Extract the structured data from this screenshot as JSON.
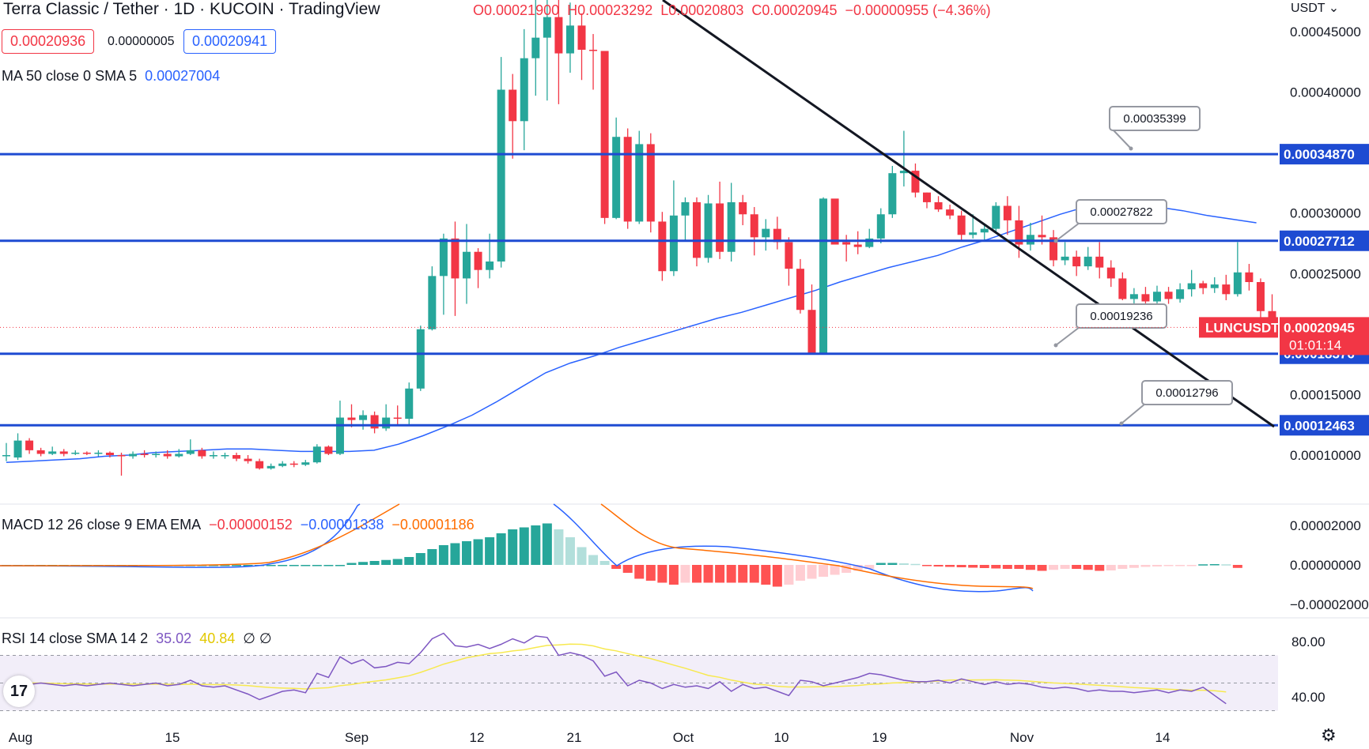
{
  "header": {
    "symbol_title": "Terra Classic / Tether · 1D · KUCOIN · TradingView",
    "ohlc": {
      "o": "O0.00021900",
      "h": "H0.00023292",
      "l": "L0.00020803",
      "c": "C0.00020945",
      "chg": "−0.00000955 (−4.36%)"
    },
    "bid": "0.00020936",
    "spread": "0.00000005",
    "ask": "0.00020941",
    "currency": "USDT ⌄"
  },
  "indicators": {
    "ma_label": "MA 50 close 0 SMA 5",
    "ma_value": "0.00027004",
    "macd_label": "MACD 12 26 close 9 EMA EMA",
    "macd_hist": "−0.00000152",
    "macd_line": "−0.00001338",
    "macd_signal": "−0.00001186",
    "rsi_label": "RSI 14 close SMA 14 2",
    "rsi_value": "35.02",
    "rsi_sma": "40.84",
    "rsi_extra": "∅ ∅"
  },
  "colors": {
    "up": "#26a69a",
    "down": "#f23645",
    "line": "#1e4bd2",
    "ma": "#2962ff",
    "signal": "#ff6d00",
    "rsi": "#7e57c2",
    "rsi_sma": "#f7e94f"
  },
  "icons": {
    "logo": "tradingview-logo-icon",
    "settings": "gear-icon"
  },
  "chart_data": {
    "type": "candlestick",
    "x_ticks": [
      "Aug",
      "15",
      "Sep",
      "12",
      "21",
      "Oct",
      "10",
      "19",
      "Nov",
      "14"
    ],
    "y_ticks": [
      "0.00045000",
      "0.00040000",
      "0.00030000",
      "0.00025000",
      "0.00015000",
      "0.00010000"
    ],
    "support_resistance": [
      {
        "value": 0.0003487,
        "label": "0.00034870"
      },
      {
        "value": 0.00027712,
        "label": "0.00027712"
      },
      {
        "value": 0.00018376,
        "label": "0.00018376"
      },
      {
        "value": 0.00012463,
        "label": "0.00012463"
      }
    ],
    "callouts": [
      "0.00035399",
      "0.00027822",
      "0.00019236",
      "0.00012796"
    ],
    "last_price": {
      "symbol": "LUNCUSDT",
      "value": "0.00020945",
      "countdown": "01:01:14"
    },
    "candles": [
      [
        0.0001,
        0.0001,
        0.00011,
        9.5e-05
      ],
      [
        9.8e-05,
        0.000112,
        0.000118,
        9.6e-05
      ],
      [
        0.000112,
        0.000104,
        0.000114,
        0.000101
      ],
      [
        0.000104,
        0.000101,
        0.000106,
        9.9e-05
      ],
      [
        0.000101,
        0.000103,
        0.000107,
        0.0001
      ],
      [
        0.000103,
        0.000101,
        0.000105,
        9.9e-05
      ],
      [
        0.000101,
        0.000102,
        0.000104,
        0.0001
      ],
      [
        0.000102,
        0.000101,
        0.000103,
        0.0001
      ],
      [
        0.000101,
        0.000102,
        0.000104,
        9.9e-05
      ],
      [
        0.000102,
        0.0001,
        0.000103,
        9.8e-05
      ],
      [
        0.0001,
        9.9e-05,
        0.000102,
        8.3e-05
      ],
      [
        9.9e-05,
        0.000101,
        0.000103,
        9.7e-05
      ],
      [
        0.000101,
        0.0001,
        0.000104,
        9.8e-05
      ],
      [
        0.0001,
        0.000101,
        0.000103,
        9.8e-05
      ],
      [
        0.000101,
        9.9e-05,
        0.000104,
        9.7e-05
      ],
      [
        9.9e-05,
        0.000101,
        0.000105,
        9.8e-05
      ],
      [
        0.000101,
        0.000104,
        0.000113,
        0.0001
      ],
      [
        0.000104,
        9.9e-05,
        0.000106,
        9.7e-05
      ],
      [
        9.9e-05,
        0.0001,
        0.000103,
        9.7e-05
      ],
      [
        0.0001,
        0.0001,
        0.000102,
        9.7e-05
      ],
      [
        0.0001,
        9.7e-05,
        0.000102,
        9.5e-05
      ],
      [
        9.7e-05,
        9.5e-05,
        0.0001,
        9.3e-05
      ],
      [
        9.5e-05,
        8.9e-05,
        9.7e-05,
        8.8e-05
      ],
      [
        8.9e-05,
        9.1e-05,
        9.3e-05,
        8.8e-05
      ],
      [
        9.1e-05,
        9.3e-05,
        9.5e-05,
        9e-05
      ],
      [
        9.3e-05,
        9.2e-05,
        9.5e-05,
        9e-05
      ],
      [
        9.2e-05,
        9.4e-05,
        9.6e-05,
        9.1e-05
      ],
      [
        9.4e-05,
        0.000107,
        0.000109,
        9.3e-05
      ],
      [
        0.000107,
        0.000101,
        0.000108,
        0.0001
      ],
      [
        0.000101,
        0.000131,
        0.000145,
        0.0001
      ],
      [
        0.000131,
        0.000129,
        0.000142,
        0.000123
      ],
      [
        0.000129,
        0.000133,
        0.000137,
        0.000121
      ],
      [
        0.000133,
        0.000122,
        0.000136,
        0.000118
      ],
      [
        0.000122,
        0.000131,
        0.000142,
        0.00012
      ],
      [
        0.000131,
        0.00013,
        0.000141,
        0.000124
      ],
      [
        0.00013,
        0.000155,
        0.00016,
        0.000125
      ],
      [
        0.000155,
        0.000204,
        0.000207,
        0.000153
      ],
      [
        0.000204,
        0.000248,
        0.000256,
        0.000203
      ],
      [
        0.000248,
        0.000279,
        0.000283,
        0.000216
      ],
      [
        0.000279,
        0.000246,
        0.000293,
        0.000215
      ],
      [
        0.000246,
        0.000268,
        0.000291,
        0.000225
      ],
      [
        0.000268,
        0.000253,
        0.000271,
        0.000238
      ],
      [
        0.000253,
        0.00026,
        0.000283,
        0.000246
      ],
      [
        0.00026,
        0.000402,
        0.000429,
        0.000255
      ],
      [
        0.000402,
        0.000376,
        0.000415,
        0.000345
      ],
      [
        0.000376,
        0.000428,
        0.000452,
        0.000352
      ],
      [
        0.000428,
        0.000445,
        0.000486,
        0.000397
      ],
      [
        0.000445,
        0.000462,
        0.000491,
        0.000393
      ],
      [
        0.000462,
        0.000432,
        0.000484,
        0.00039
      ],
      [
        0.000432,
        0.000455,
        0.000474,
        0.000416
      ],
      [
        0.000455,
        0.000435,
        0.000465,
        0.00041
      ],
      [
        0.000435,
        0.000434,
        0.000448,
        0.000402
      ],
      [
        0.000434,
        0.000296,
        0.000427,
        0.000291
      ],
      [
        0.000296,
        0.000363,
        0.000379,
        0.000295
      ],
      [
        0.000363,
        0.000293,
        0.00037,
        0.000287
      ],
      [
        0.000293,
        0.000357,
        0.000368,
        0.000291
      ],
      [
        0.000357,
        0.000293,
        0.000366,
        0.000284
      ],
      [
        0.000293,
        0.000252,
        0.000301,
        0.000244
      ],
      [
        0.000252,
        0.000298,
        0.000327,
        0.000248
      ],
      [
        0.000298,
        0.000309,
        0.000313,
        0.000277
      ],
      [
        0.000309,
        0.000263,
        0.000313,
        0.000256
      ],
      [
        0.000263,
        0.000308,
        0.000315,
        0.000259
      ],
      [
        0.000308,
        0.000268,
        0.000326,
        0.000262
      ],
      [
        0.000268,
        0.000309,
        0.000325,
        0.00026
      ],
      [
        0.000309,
        0.000299,
        0.000315,
        0.00029
      ],
      [
        0.000299,
        0.00028,
        0.000305,
        0.000265
      ],
      [
        0.00028,
        0.000287,
        0.000295,
        0.000269
      ],
      [
        0.000287,
        0.000276,
        0.000297,
        0.00027
      ],
      [
        0.000276,
        0.000254,
        0.00028,
        0.00024
      ],
      [
        0.000254,
        0.00022,
        0.000262,
        0.000217
      ],
      [
        0.00022,
        0.000184,
        0.000241,
        0.000183
      ],
      [
        0.000184,
        0.000312,
        0.000313,
        0.000183
      ],
      [
        0.000312,
        0.000274,
        0.000311,
        0.000276
      ],
      [
        0.000276,
        0.000274,
        0.000282,
        0.00026
      ],
      [
        0.000274,
        0.000272,
        0.000285,
        0.000266
      ],
      [
        0.000272,
        0.000279,
        0.000287,
        0.000271
      ],
      [
        0.000279,
        0.000299,
        0.000304,
        0.000275
      ],
      [
        0.000299,
        0.000333,
        0.000339,
        0.000296
      ],
      [
        0.000333,
        0.000335,
        0.000368,
        0.000322
      ],
      [
        0.000335,
        0.000317,
        0.000341,
        0.000313
      ],
      [
        0.000317,
        0.000309,
        0.000317,
        0.000304
      ],
      [
        0.000309,
        0.000303,
        0.000314,
        0.000301
      ],
      [
        0.000303,
        0.000298,
        0.000307,
        0.000295
      ],
      [
        0.000298,
        0.000282,
        0.000302,
        0.000277
      ],
      [
        0.000282,
        0.000284,
        0.000299,
        0.000279
      ],
      [
        0.000284,
        0.000287,
        0.000291,
        0.000277
      ],
      [
        0.000287,
        0.000306,
        0.000309,
        0.000283
      ],
      [
        0.000306,
        0.000294,
        0.000314,
        0.000282
      ],
      [
        0.000294,
        0.000274,
        0.000306,
        0.000263
      ],
      [
        0.000274,
        0.000282,
        0.000292,
        0.000269
      ],
      [
        0.000282,
        0.00028,
        0.000298,
        0.000274
      ],
      [
        0.00028,
        0.000261,
        0.000286,
        0.000256
      ],
      [
        0.000261,
        0.000264,
        0.000276,
        0.000257
      ],
      [
        0.000264,
        0.000256,
        0.000269,
        0.000248
      ],
      [
        0.000256,
        0.000264,
        0.000272,
        0.000253
      ],
      [
        0.000264,
        0.000255,
        0.000276,
        0.000246
      ],
      [
        0.000255,
        0.000246,
        0.000261,
        0.000239
      ],
      [
        0.000246,
        0.000229,
        0.000251,
        0.000228
      ],
      [
        0.000229,
        0.000233,
        0.000238,
        0.000224
      ],
      [
        0.000233,
        0.000227,
        0.000239,
        0.000221
      ],
      [
        0.000227,
        0.000235,
        0.00024,
        0.000225
      ],
      [
        0.000235,
        0.000229,
        0.000239,
        0.000225
      ],
      [
        0.000229,
        0.000237,
        0.000242,
        0.000226
      ],
      [
        0.000237,
        0.000242,
        0.000253,
        0.000231
      ],
      [
        0.000242,
        0.000238,
        0.000244,
        0.000233
      ],
      [
        0.000238,
        0.000241,
        0.000247,
        0.000234
      ],
      [
        0.000241,
        0.000233,
        0.000249,
        0.000228
      ],
      [
        0.000233,
        0.000251,
        0.000276,
        0.000231
      ],
      [
        0.000251,
        0.000243,
        0.000258,
        0.000236
      ],
      [
        0.000243,
        0.000219,
        0.000246,
        0.000199
      ],
      [
        0.000219,
        0.00020945,
        0.00023292,
        0.00020803
      ]
    ],
    "ma50": [
      9.4e-05,
      9.5e-05,
      9.6e-05,
      9.7e-05,
      9.9e-05,
      0.0001,
      0.000102,
      0.000103,
      0.000104,
      0.000105,
      0.000105,
      0.000104,
      0.000103,
      0.000103,
      0.000103,
      0.000104,
      0.000109,
      0.000116,
      0.000124,
      0.000133,
      0.000144,
      0.000156,
      0.000168,
      0.000176,
      0.000182,
      0.000189,
      0.000195,
      0.000201,
      0.000207,
      0.000213,
      0.000218,
      0.000224,
      0.00023,
      0.000236,
      0.000243,
      0.000249,
      0.000255,
      0.00026,
      0.000265,
      0.000272,
      0.000278,
      0.000285,
      0.000292,
      0.000299,
      0.000305,
      0.000306,
      0.000307,
      0.000305,
      0.000302,
      0.000298,
      0.000295,
      0.000292
    ],
    "ma_start_index": 0,
    "macd_hist": [
      0,
      0,
      0,
      0,
      0,
      0,
      0,
      0,
      0,
      0,
      0,
      0,
      0,
      0,
      0,
      0,
      0,
      0,
      0,
      0,
      0,
      0,
      0,
      0,
      0,
      0,
      0,
      0,
      0,
      0,
      1e-06,
      1.5e-06,
      2e-06,
      2.5e-06,
      3e-06,
      4e-06,
      6e-06,
      8e-06,
      1e-05,
      1.1e-05,
      1.2e-05,
      1.3e-05,
      1.4e-05,
      1.6e-05,
      1.8e-05,
      1.9e-05,
      2e-05,
      2.1e-05,
      1.8e-05,
      1.4e-05,
      9e-06,
      5e-06,
      2e-06,
      -2e-06,
      -4e-06,
      -7e-06,
      -8e-06,
      -9e-06,
      -1e-05,
      -9e-06,
      -9e-06,
      -9e-06,
      -9e-06,
      -9e-06,
      -9e-06,
      -9e-06,
      -1e-05,
      -1.1e-05,
      -1e-05,
      -8e-06,
      -7e-06,
      -6e-06,
      -5e-06,
      -4e-06,
      -3e-06,
      -2e-06,
      1e-06,
      1e-06,
      8e-07,
      5e-07,
      -6e-07,
      -8e-07,
      -1e-06,
      -1.2e-06,
      -1.4e-06,
      -1.6e-06,
      -1.8e-06,
      -2e-06,
      -2e-06,
      -2.5e-06,
      -3e-06,
      -2.5e-06,
      -2e-06,
      -2e-06,
      -2.5e-06,
      -3e-06,
      -2.8e-06,
      -2e-06,
      -1.5e-06,
      -1e-06,
      -8e-07,
      -6e-07,
      -4e-07,
      -2e-07,
      3e-07,
      4e-07,
      3e-07,
      -1.52e-06
    ],
    "rsi": [
      50,
      51,
      49,
      50,
      49,
      48,
      49,
      48,
      49,
      50,
      49,
      48,
      49,
      50,
      48,
      49,
      52,
      48,
      47,
      48,
      45,
      42,
      38,
      41,
      44,
      45,
      43,
      57,
      54,
      69,
      64,
      67,
      61,
      62,
      65,
      64,
      72,
      82,
      86,
      77,
      76,
      78,
      75,
      78,
      82,
      79,
      84,
      83,
      70,
      72,
      70,
      66,
      55,
      58,
      48,
      52,
      50,
      46,
      49,
      47,
      48,
      46,
      51,
      44,
      49,
      46,
      47,
      44,
      41,
      52,
      51,
      48,
      50,
      52,
      54,
      57,
      56,
      54,
      52,
      51,
      51,
      52,
      50,
      53,
      51,
      49,
      51,
      49,
      50,
      49,
      47,
      46,
      47,
      46,
      44,
      45,
      44,
      44,
      43,
      44,
      45,
      43,
      45,
      44,
      47,
      41,
      35.02
    ]
  }
}
